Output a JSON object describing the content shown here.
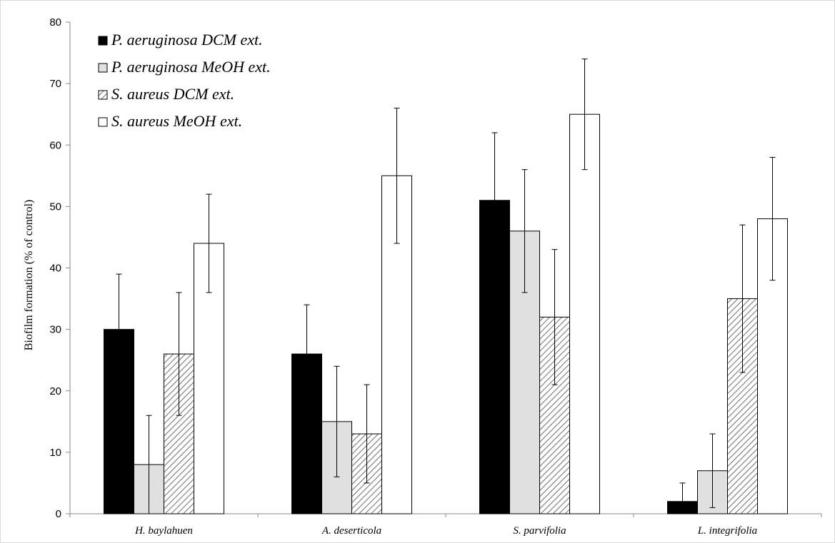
{
  "chart_data": {
    "type": "bar",
    "title": "",
    "xlabel": "",
    "ylabel": "Biofilm formation (% of control)",
    "ylim": [
      0,
      80
    ],
    "yticks": [
      0,
      10,
      20,
      30,
      40,
      50,
      60,
      70,
      80
    ],
    "grid": false,
    "legend_position": "top-left",
    "categories": [
      "H. baylahuen",
      "A. deserticola",
      "S. parvifolia",
      "L. integrifolia"
    ],
    "series": [
      {
        "name": "P. aeruginosa DCM ext.",
        "fill": "solid-black",
        "color": "#000000",
        "values": [
          30,
          26,
          51,
          2
        ],
        "errors": [
          9,
          8,
          11,
          3
        ]
      },
      {
        "name": "P. aeruginosa MeOH ext.",
        "fill": "light-gray",
        "color": "#e0e0e0",
        "values": [
          8,
          15,
          46,
          7
        ],
        "errors": [
          8,
          9,
          10,
          6
        ]
      },
      {
        "name": "S. aureus DCM ext.",
        "fill": "diagonal-hatch",
        "color": "#909090",
        "values": [
          26,
          13,
          32,
          35
        ],
        "errors": [
          10,
          8,
          11,
          12
        ]
      },
      {
        "name": "S. aureus MeOH ext.",
        "fill": "white",
        "color": "#ffffff",
        "values": [
          44,
          55,
          65,
          48
        ],
        "errors": [
          8,
          11,
          9,
          10
        ]
      }
    ]
  }
}
